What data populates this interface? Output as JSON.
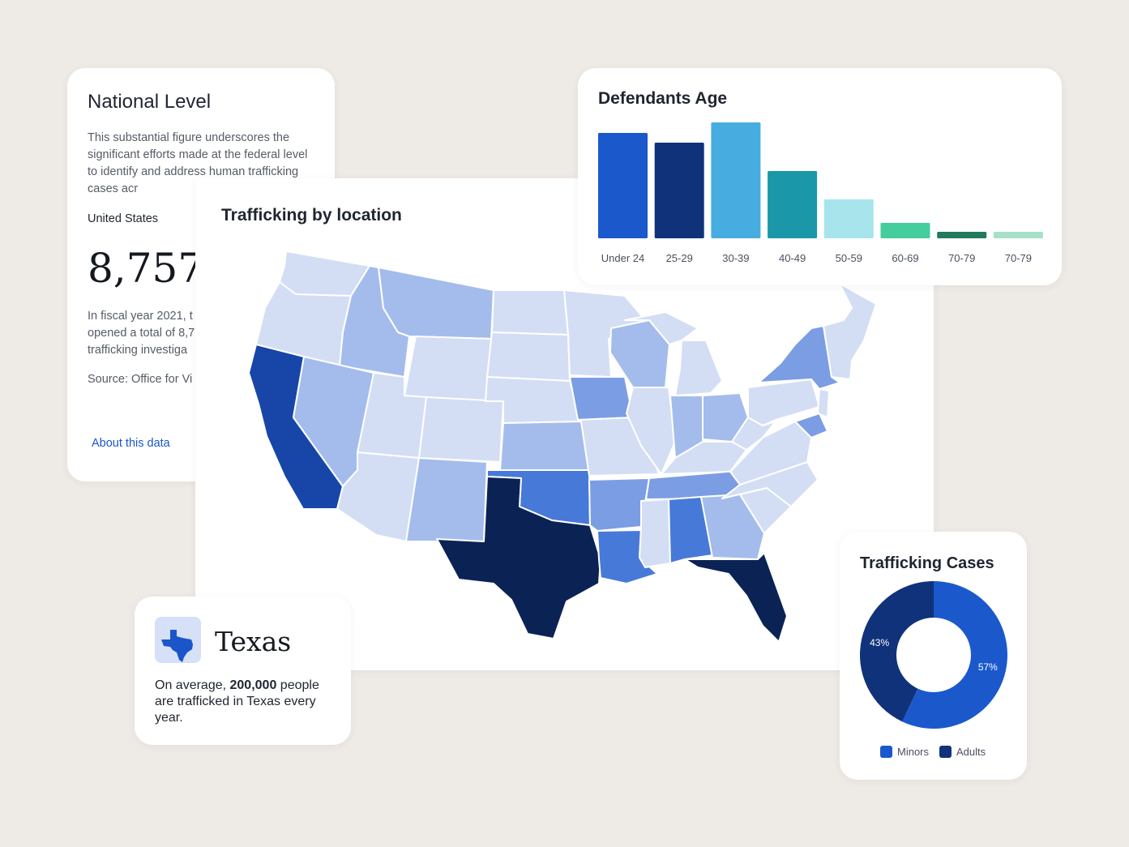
{
  "national": {
    "title": "National Level",
    "intro": "This substantial figure underscores the significant efforts made at the federal level to identify and address human trafficking cases acr",
    "region": "United States",
    "value": "8,757",
    "fiscal_line1": "In fiscal year 2021, t",
    "fiscal_line2": "opened a total of 8,7",
    "fiscal_line3": "trafficking investiga",
    "source": "Source: Office for Vi",
    "about_link": "About this data"
  },
  "map": {
    "title": "Trafficking by location"
  },
  "texas": {
    "state": "Texas",
    "text_before": "On average, ",
    "highlight": "200,000",
    "text_after": " people are trafficked in Texas every year."
  },
  "colors": {
    "very_light": "#d3def5",
    "light": "#a4bcec",
    "medium": "#7b9de3",
    "medium_strong": "#4779d8",
    "strong": "#1746a8",
    "darkest": "#0b2255"
  },
  "chart_data": [
    {
      "type": "bar",
      "title": "Defendants Age",
      "categories": [
        "Under 24",
        "25-29",
        "30-39",
        "40-49",
        "50-59",
        "60-69",
        "70-79",
        "70-79"
      ],
      "values": [
        130,
        118,
        143,
        83,
        48,
        19,
        8,
        8
      ],
      "colors": [
        "#1a58cc",
        "#10327a",
        "#47ade1",
        "#1a97a8",
        "#a7e4ec",
        "#44cd9d",
        "#217a5c",
        "#a7e0c6"
      ],
      "ylim": [
        0,
        143
      ],
      "grid": false
    },
    {
      "type": "pie",
      "title": "Trafficking Cases",
      "labels": [
        "Minors",
        "Adults"
      ],
      "values": [
        57,
        43
      ],
      "value_labels": [
        "57%",
        "43%"
      ],
      "colors": [
        "#1a58cc",
        "#10327a"
      ],
      "legend": "bottom"
    }
  ]
}
